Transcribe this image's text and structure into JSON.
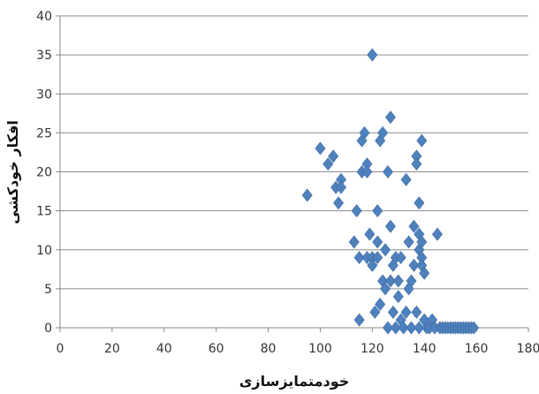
{
  "chart_data": {
    "type": "scatter",
    "title": "",
    "xlabel": "خودمتمایزسازی",
    "ylabel": "افکار خودکشی",
    "xlim": [
      0,
      180
    ],
    "ylim": [
      0,
      40
    ],
    "x_ticks": [
      0,
      20,
      40,
      60,
      80,
      100,
      120,
      140,
      160,
      180
    ],
    "y_ticks": [
      0,
      5,
      10,
      15,
      20,
      25,
      30,
      35,
      40
    ],
    "grid": "horizontal",
    "legend": "none",
    "marker": "diamond",
    "marker_color": "#4F81BD",
    "points": [
      [
        95,
        17
      ],
      [
        100,
        23
      ],
      [
        103,
        21
      ],
      [
        105,
        22
      ],
      [
        106,
        18
      ],
      [
        107,
        16
      ],
      [
        108,
        19
      ],
      [
        108,
        18
      ],
      [
        113,
        11
      ],
      [
        114,
        15
      ],
      [
        115,
        1
      ],
      [
        115,
        9
      ],
      [
        116,
        24
      ],
      [
        116,
        20
      ],
      [
        117,
        25
      ],
      [
        118,
        21
      ],
      [
        118,
        20
      ],
      [
        118,
        9
      ],
      [
        119,
        12
      ],
      [
        120,
        35
      ],
      [
        120,
        9
      ],
      [
        120,
        8
      ],
      [
        121,
        2
      ],
      [
        122,
        15
      ],
      [
        122,
        11
      ],
      [
        122,
        9
      ],
      [
        123,
        24
      ],
      [
        123,
        3
      ],
      [
        124,
        25
      ],
      [
        124,
        6
      ],
      [
        125,
        10
      ],
      [
        125,
        5
      ],
      [
        126,
        20
      ],
      [
        126,
        0
      ],
      [
        127,
        27
      ],
      [
        127,
        13
      ],
      [
        127,
        6
      ],
      [
        128,
        8
      ],
      [
        128,
        2
      ],
      [
        129,
        9
      ],
      [
        129,
        0
      ],
      [
        130,
        6
      ],
      [
        130,
        4
      ],
      [
        131,
        9
      ],
      [
        131,
        1
      ],
      [
        132,
        0
      ],
      [
        133,
        19
      ],
      [
        133,
        2
      ],
      [
        134,
        11
      ],
      [
        134,
        5
      ],
      [
        135,
        6
      ],
      [
        135,
        0
      ],
      [
        136,
        13
      ],
      [
        136,
        8
      ],
      [
        137,
        22
      ],
      [
        137,
        21
      ],
      [
        137,
        2
      ],
      [
        138,
        16
      ],
      [
        138,
        12
      ],
      [
        138,
        10
      ],
      [
        138,
        0
      ],
      [
        139,
        24
      ],
      [
        139,
        11
      ],
      [
        139,
        9
      ],
      [
        139,
        8
      ],
      [
        140,
        7
      ],
      [
        140,
        1
      ],
      [
        141,
        0
      ],
      [
        142,
        0
      ],
      [
        143,
        1
      ],
      [
        144,
        0
      ],
      [
        145,
        12
      ],
      [
        146,
        0
      ],
      [
        147,
        0
      ],
      [
        148,
        0
      ],
      [
        149,
        0
      ],
      [
        150,
        0
      ],
      [
        151,
        0
      ],
      [
        152,
        0
      ],
      [
        153,
        0
      ],
      [
        154,
        0
      ],
      [
        155,
        0
      ],
      [
        156,
        0
      ],
      [
        157,
        0
      ],
      [
        158,
        0
      ],
      [
        159,
        0
      ]
    ]
  }
}
